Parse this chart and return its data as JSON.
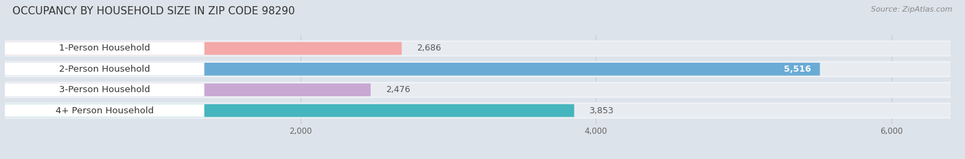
{
  "title": "OCCUPANCY BY HOUSEHOLD SIZE IN ZIP CODE 98290",
  "source": "Source: ZipAtlas.com",
  "categories": [
    "1-Person Household",
    "2-Person Household",
    "3-Person Household",
    "4+ Person Household"
  ],
  "values": [
    2686,
    5516,
    2476,
    3853
  ],
  "bar_colors": [
    "#f4a8a8",
    "#6aabd6",
    "#c9a8d4",
    "#45b5be"
  ],
  "label_bg_color": "#ffffff",
  "bar_bg_color": "#e8ecf0",
  "row_bg_colors": [
    "#eef1f5",
    "#eef1f5",
    "#eef1f5",
    "#eef1f5"
  ],
  "background_color": "#dde3ea",
  "xlim": [
    0,
    6400
  ],
  "xmin": 0,
  "xticks": [
    2000,
    4000,
    6000
  ],
  "title_fontsize": 11,
  "label_fontsize": 9.5,
  "value_fontsize": 9,
  "bar_height": 0.62,
  "figsize": [
    14.06,
    2.33
  ],
  "dpi": 100
}
